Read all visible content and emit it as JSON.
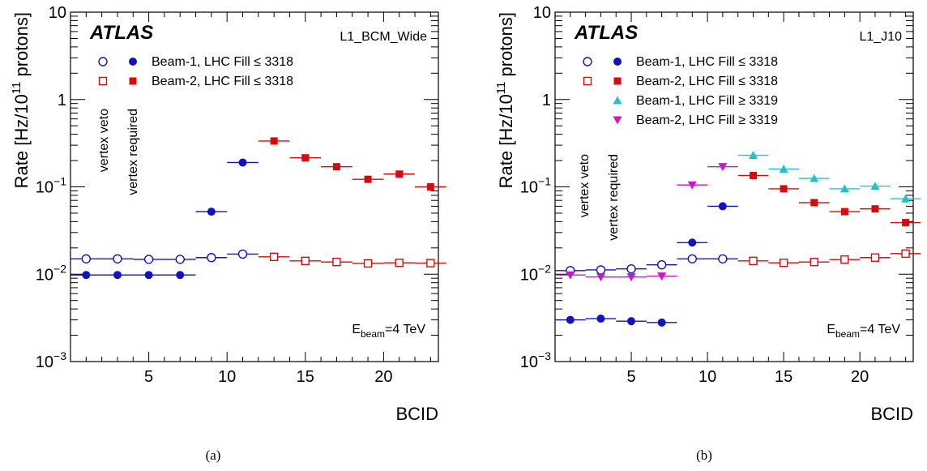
{
  "colors": {
    "beam1": "#1212c0",
    "beam2": "#d60c0c",
    "beam1_late": "#22c3c8",
    "beam2_late": "#c818c8",
    "axis": "#000000"
  },
  "chart_data": [
    {
      "type": "scatter",
      "panel_label": "(a)",
      "experiment": "ATLAS",
      "trigger": "L1_BCM_Wide",
      "energy_note": {
        "prefix": "E",
        "sub": "beam",
        "suffix": "=4 TeV"
      },
      "xlabel": "BCID",
      "ylabel": {
        "prefix": "Rate [Hz/10",
        "sup": "11",
        "suffix": " protons]"
      },
      "xlim": [
        0,
        23.5
      ],
      "ylim": [
        0.001,
        10
      ],
      "yscale": "log",
      "xticks": [
        5,
        10,
        15,
        20
      ],
      "yticks": [
        {
          "value": 0.001,
          "base": "10",
          "exp": "−3"
        },
        {
          "value": 0.01,
          "base": "10",
          "exp": "−2"
        },
        {
          "value": 0.1,
          "base": "10",
          "exp": "−1"
        },
        {
          "value": 1,
          "base": "1",
          "exp": ""
        },
        {
          "value": 10,
          "base": "10",
          "exp": ""
        }
      ],
      "vertical_labels": [
        "vertex veto",
        "vertex required"
      ],
      "legend_placement": "top-left",
      "legend": [
        {
          "label": "Beam-1, LHC Fill ≤ 3318",
          "markers": [
            "circle-open",
            "circle"
          ],
          "color": "beam1"
        },
        {
          "label": "Beam-2, LHC Fill ≤ 3318",
          "markers": [
            "square-open",
            "square"
          ],
          "color": "beam2"
        }
      ],
      "series": [
        {
          "name": "Beam-1, LHC Fill ≤ 3318",
          "selection": "vertex veto",
          "marker": "circle-open",
          "color": "beam1",
          "x": [
            1,
            3,
            5,
            7,
            9,
            11
          ],
          "y": [
            0.015,
            0.015,
            0.0148,
            0.0148,
            0.0155,
            0.017
          ]
        },
        {
          "name": "Beam-1, LHC Fill ≤ 3318",
          "selection": "vertex required",
          "marker": "circle",
          "color": "beam1",
          "x": [
            1,
            3,
            5,
            7,
            9,
            11
          ],
          "y": [
            0.0098,
            0.0098,
            0.0098,
            0.0098,
            0.052,
            0.19
          ]
        },
        {
          "name": "Beam-2, LHC Fill ≤ 3318",
          "selection": "vertex veto",
          "marker": "square-open",
          "color": "beam2",
          "x": [
            13,
            15,
            17,
            19,
            21,
            23
          ],
          "y": [
            0.0158,
            0.0142,
            0.0138,
            0.0133,
            0.0135,
            0.0134
          ]
        },
        {
          "name": "Beam-2, LHC Fill ≤ 3318",
          "selection": "vertex required",
          "marker": "square",
          "color": "beam2",
          "x": [
            13,
            15,
            17,
            19,
            21,
            23
          ],
          "y": [
            0.335,
            0.215,
            0.17,
            0.122,
            0.14,
            0.1
          ]
        }
      ]
    },
    {
      "type": "scatter",
      "panel_label": "(b)",
      "experiment": "ATLAS",
      "trigger": "L1_J10",
      "energy_note": {
        "prefix": "E",
        "sub": "beam",
        "suffix": "=4 TeV"
      },
      "xlabel": "BCID",
      "ylabel": {
        "prefix": "Rate [Hz/10",
        "sup": "11",
        "suffix": " protons]"
      },
      "xlim": [
        0,
        23.5
      ],
      "ylim": [
        0.001,
        10
      ],
      "yscale": "log",
      "xticks": [
        5,
        10,
        15,
        20
      ],
      "yticks": [
        {
          "value": 0.001,
          "base": "10",
          "exp": "−3"
        },
        {
          "value": 0.01,
          "base": "10",
          "exp": "−2"
        },
        {
          "value": 0.1,
          "base": "10",
          "exp": "−1"
        },
        {
          "value": 1,
          "base": "1",
          "exp": ""
        },
        {
          "value": 10,
          "base": "10",
          "exp": ""
        }
      ],
      "vertical_labels": [
        "vertex veto",
        "vertex required"
      ],
      "legend_placement": "top-left",
      "legend": [
        {
          "label": "Beam-1, LHC Fill ≤ 3318",
          "markers": [
            "circle-open",
            "circle"
          ],
          "color": "beam1"
        },
        {
          "label": "Beam-2, LHC Fill ≤ 3318",
          "markers": [
            "square-open",
            "square"
          ],
          "color": "beam2"
        },
        {
          "label": "Beam-1, LHC Fill ≥ 3319",
          "markers": [
            "triangle-up"
          ],
          "color": "beam1_late"
        },
        {
          "label": "Beam-2, LHC Fill ≥ 3319",
          "markers": [
            "triangle-down"
          ],
          "color": "beam2_late"
        }
      ],
      "series": [
        {
          "name": "Beam-1, LHC Fill ≤ 3318",
          "selection": "vertex veto",
          "marker": "circle-open",
          "color": "beam1",
          "x": [
            1,
            3,
            5,
            7,
            9,
            11
          ],
          "y": [
            0.011,
            0.0112,
            0.0115,
            0.0128,
            0.015,
            0.015
          ]
        },
        {
          "name": "Beam-1, LHC Fill ≤ 3318",
          "selection": "vertex required",
          "marker": "circle",
          "color": "beam1",
          "x": [
            1,
            3,
            5,
            7,
            9,
            11
          ],
          "y": [
            0.003,
            0.0031,
            0.0029,
            0.0028,
            0.023,
            0.06
          ]
        },
        {
          "name": "Beam-2, LHC Fill ≤ 3318",
          "selection": "vertex veto",
          "marker": "square-open",
          "color": "beam2",
          "x": [
            13,
            15,
            17,
            19,
            21,
            23
          ],
          "y": [
            0.0142,
            0.0135,
            0.0138,
            0.0147,
            0.0155,
            0.0172
          ]
        },
        {
          "name": "Beam-2, LHC Fill ≤ 3318",
          "selection": "vertex required",
          "marker": "square",
          "color": "beam2",
          "x": [
            13,
            15,
            17,
            19,
            21,
            23
          ],
          "y": [
            0.135,
            0.095,
            0.066,
            0.052,
            0.056,
            0.039
          ]
        },
        {
          "name": "Beam-1, LHC Fill ≥ 3319",
          "selection": "",
          "marker": "triangle-up",
          "color": "beam1_late",
          "x": [
            13,
            15,
            17,
            19,
            21,
            23
          ],
          "y": [
            0.23,
            0.16,
            0.125,
            0.095,
            0.102,
            0.073
          ]
        },
        {
          "name": "Beam-2, LHC Fill ≥ 3319",
          "selection": "",
          "marker": "triangle-down",
          "color": "beam2_late",
          "x": [
            1,
            3,
            5,
            7,
            9,
            11
          ],
          "y": [
            0.0098,
            0.0093,
            0.0093,
            0.0095,
            0.105,
            0.17
          ]
        }
      ]
    }
  ]
}
